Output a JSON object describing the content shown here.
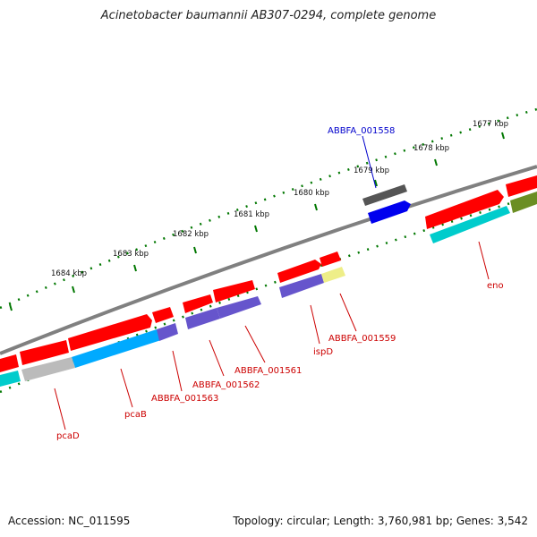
{
  "title": "Acinetobacter baumannii AB307-0294, complete genome",
  "footer": {
    "accession": "Accession: NC_011595",
    "summary": "Topology: circular; Length: 3,760,981 bp; Genes: 3,542"
  },
  "scale_labels": [
    "1677 kbp",
    "1678 kbp",
    "1679 kbp",
    "1680 kbp",
    "1681 kbp",
    "1682 kbp",
    "1683 kbp",
    "1684 kbp"
  ],
  "gene_labels": {
    "ABBFA_001558": "ABBFA_001558",
    "eno": "eno",
    "ABBFA_001559": "ABBFA_001559",
    "ispD": "ispD",
    "ABBFA_001561": "ABBFA_001561",
    "ABBFA_001562": "ABBFA_001562",
    "ABBFA_001563": "ABBFA_001563",
    "pcaB": "pcaB",
    "pcaD": "pcaD"
  },
  "colors": {
    "cds": "#ff0000",
    "backbone": "#808080",
    "tick": "#007700",
    "blue_feature": "#0000ee",
    "dark_gray_feature": "#555555",
    "cyan_feature": "#00cccc",
    "sky_feature": "#00aaff",
    "purple_feature": "#6655cc",
    "yellow_feature": "#eeee88",
    "olive_feature": "#6b8e23",
    "light_gray_feature": "#bbbbbb"
  }
}
